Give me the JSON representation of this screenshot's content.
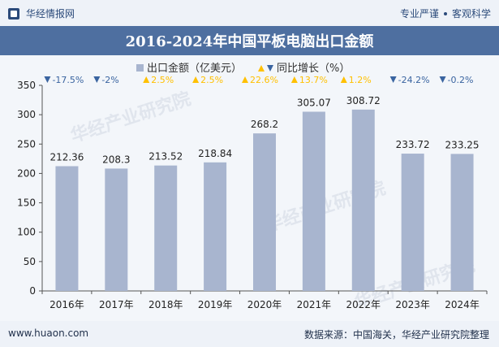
{
  "header": {
    "brand": "华经情报网",
    "tag1": "专业严谨",
    "tag2": "客观科学"
  },
  "title": "2016-2024年中国平板电脑出口金额",
  "legend": {
    "series1": "出口金额（亿美元）",
    "series2": "同比增长（%）"
  },
  "watermark": "华经产业研究院",
  "footer": {
    "website": "www.huaon.com",
    "source": "数据来源：中国海关，华经产业研究院整理"
  },
  "colors": {
    "bar": "#a8b5cf",
    "up": "#ffc000",
    "down": "#3a64a0",
    "title_bg": "#4e6fa0"
  },
  "chart_data": {
    "type": "bar",
    "categories": [
      "2016年",
      "2017年",
      "2018年",
      "2019年",
      "2020年",
      "2021年",
      "2022年",
      "2023年",
      "2024年"
    ],
    "series": [
      {
        "name": "出口金额（亿美元）",
        "values": [
          212.36,
          208.3,
          213.52,
          218.84,
          268.2,
          305.07,
          308.72,
          233.72,
          233.25
        ]
      },
      {
        "name": "同比增长（%）",
        "values": [
          -17.5,
          -2,
          2.5,
          2.5,
          22.6,
          13.7,
          1.2,
          -24.2,
          -0.2
        ],
        "labels": [
          "-17.5%",
          "-2%",
          "2.5%",
          "2.5%",
          "22.6%",
          "13.7%",
          "1.2%",
          "-24.2%",
          "-0.2%"
        ]
      }
    ],
    "value_labels": [
      "212.36",
      "208.3",
      "213.52",
      "218.84",
      "268.2",
      "305.07",
      "308.72",
      "233.72",
      "233.25"
    ],
    "ylim": [
      0,
      350
    ],
    "yticks": [
      0,
      50,
      100,
      150,
      200,
      250,
      300,
      350
    ],
    "ytick_labels": [
      "0",
      "50",
      "100",
      "150",
      "200",
      "250",
      "300",
      "350"
    ],
    "grid": false,
    "legend_position": "top-center"
  }
}
